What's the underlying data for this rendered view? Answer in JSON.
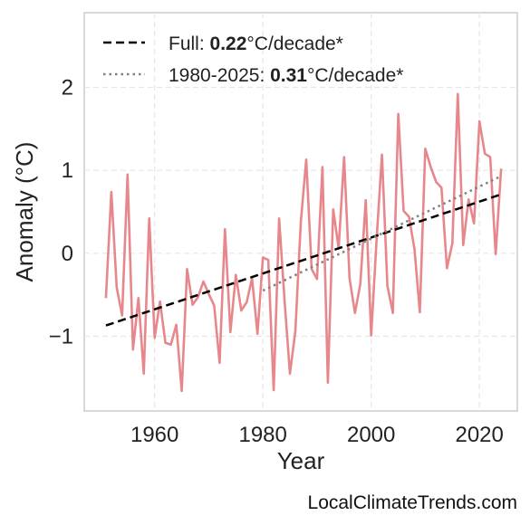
{
  "chart_data": {
    "type": "line",
    "xlabel": "Year",
    "ylabel": "Anomaly (°C)",
    "xlim": [
      1947,
      2027
    ],
    "ylim": [
      -1.9,
      2.9
    ],
    "xticks": [
      1960,
      1980,
      2000,
      2020
    ],
    "yticks": [
      -1,
      0,
      1,
      2
    ],
    "ytick_labels": [
      "−1",
      "0",
      "1",
      "2"
    ],
    "grid": true,
    "legend_position": "top-left",
    "series": [
      {
        "style": "solid",
        "color": "#e8878b",
        "x": [
          1951,
          1952,
          1953,
          1954,
          1955,
          1956,
          1957,
          1958,
          1959,
          1960,
          1961,
          1962,
          1963,
          1964,
          1965,
          1966,
          1967,
          1968,
          1969,
          1970,
          1971,
          1972,
          1973,
          1974,
          1975,
          1976,
          1977,
          1978,
          1979,
          1980,
          1981,
          1982,
          1983,
          1984,
          1985,
          1986,
          1987,
          1988,
          1989,
          1990,
          1991,
          1992,
          1993,
          1994,
          1995,
          1996,
          1997,
          1998,
          1999,
          2000,
          2001,
          2002,
          2003,
          2004,
          2005,
          2006,
          2007,
          2008,
          2009,
          2010,
          2011,
          2012,
          2013,
          2014,
          2015,
          2016,
          2017,
          2018,
          2019,
          2020,
          2021,
          2022,
          2023,
          2024
        ],
        "y": [
          -0.54,
          0.74,
          -0.41,
          -0.75,
          0.95,
          -1.16,
          -0.54,
          -1.45,
          0.42,
          -1.02,
          -0.58,
          -1.08,
          -1.1,
          -0.86,
          -1.66,
          -0.19,
          -0.62,
          -0.53,
          -0.34,
          -0.49,
          -0.63,
          -1.32,
          0.29,
          -0.95,
          -0.26,
          -0.69,
          -0.59,
          -0.3,
          -0.97,
          -0.05,
          -0.08,
          -1.65,
          0.42,
          -0.57,
          -1.45,
          -0.94,
          0.37,
          1.13,
          -0.19,
          -0.31,
          1.04,
          -1.56,
          0.53,
          0.06,
          1.16,
          -0.3,
          -0.72,
          -0.37,
          0.64,
          -0.99,
          0.17,
          1.19,
          -0.39,
          -0.72,
          1.68,
          0.51,
          0.44,
          0.05,
          -0.71,
          1.26,
          1.04,
          0.86,
          0.79,
          -0.18,
          0.12,
          1.92,
          0.1,
          0.65,
          0.36,
          1.59,
          1.2,
          1.16,
          -0.01,
          1.02
        ]
      },
      {
        "name": "Full",
        "rate": "0.22",
        "unit": "°C/decade*",
        "style": "dashed",
        "color": "#000000",
        "x": [
          1951,
          2024
        ],
        "y": [
          -0.87,
          0.71
        ]
      },
      {
        "name": "1980-2025",
        "rate": "0.31",
        "unit": "°C/decade*",
        "style": "dotted",
        "color": "#808080",
        "x": [
          1980,
          2024
        ],
        "y": [
          -0.45,
          0.93
        ]
      }
    ]
  },
  "watermark": "LocalClimateTrends.com"
}
